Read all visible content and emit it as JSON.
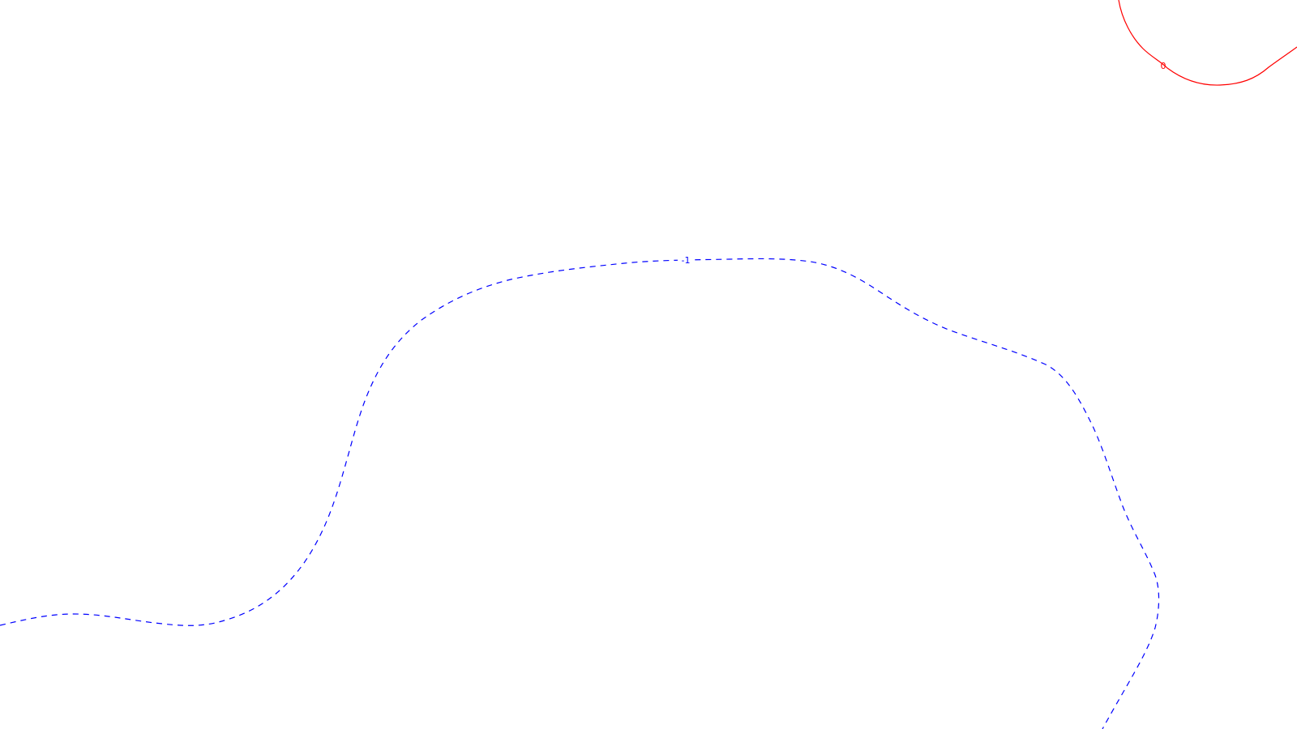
{
  "contours": [
    {
      "id": "contour-0",
      "level_label": "0",
      "style": "solid",
      "color": "#ff0000"
    },
    {
      "id": "contour-neg1",
      "level_label": "-1",
      "style": "dashed",
      "color": "#0000ff"
    }
  ]
}
